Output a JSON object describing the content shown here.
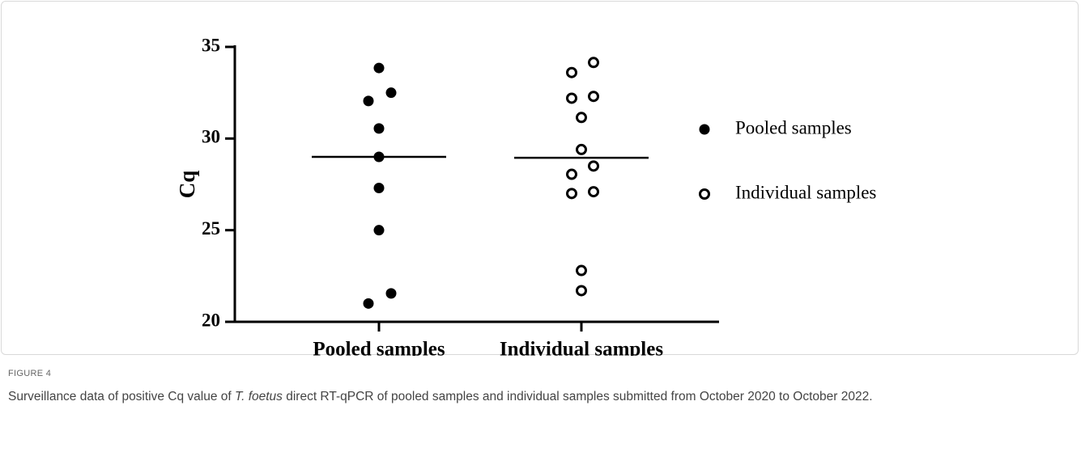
{
  "chart_data": {
    "type": "scatter",
    "ylabel": "Cq",
    "categories": [
      "Pooled samples",
      "Individual samples"
    ],
    "series": [
      {
        "name": "Pooled samples",
        "color": "#000000",
        "marker": "filled",
        "values": [
          33.85,
          32.5,
          32.05,
          30.55,
          29.0,
          27.3,
          25.0,
          21.55,
          21.0
        ],
        "median": 29.0
      },
      {
        "name": "Individual samples",
        "color": "#000000",
        "marker": "open",
        "values": [
          34.15,
          33.6,
          32.2,
          32.3,
          31.15,
          29.4,
          28.5,
          28.05,
          27.0,
          27.1,
          22.8,
          21.7
        ],
        "median": 28.95
      }
    ],
    "ylim": [
      20,
      35
    ],
    "yticks": [
      20,
      25,
      30,
      35
    ]
  },
  "figure": {
    "label": "FIGURE 4",
    "caption_before": "Surveillance data of positive Cq value of ",
    "caption_italic": "T. foetus",
    "caption_after": " direct RT-qPCR of pooled samples and individual samples submitted from October 2020 to October 2022."
  }
}
